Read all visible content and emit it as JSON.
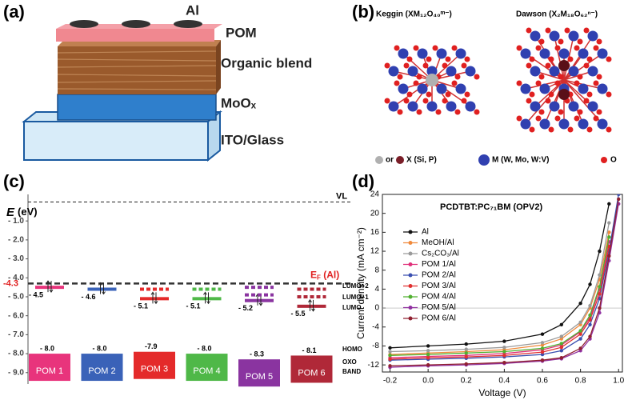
{
  "panel_labels": [
    "(a)",
    "(b)",
    "(c)",
    "(d)"
  ],
  "device": {
    "layers": [
      "Al",
      "POM",
      "Organic blend",
      "MoOₓ",
      "ITO/Glass"
    ]
  },
  "structures": {
    "keggin": "Keggin (XM₁₂O₄₀ᵐ⁻)",
    "dawson": "Dawson (X₂M₁₈O₆₂ⁿ⁻)",
    "legend": [
      "or",
      "X (Si, P)",
      "M (W, Mo, W:V)",
      "O"
    ]
  },
  "chart_data": [
    {
      "type": "energy-diagram",
      "y_symbol": "E",
      "y_unit": "(eV)",
      "categories": [
        "POM 1",
        "POM 2",
        "POM 3",
        "POM 4",
        "POM 5",
        "POM 6"
      ],
      "colors": [
        "#e8347c",
        "#3a62b8",
        "#e42a2a",
        "#4fb848",
        "#8a34a0",
        "#b02838"
      ],
      "lumo": [
        -4.5,
        -4.6,
        -5.1,
        -5.1,
        -5.2,
        -5.5
      ],
      "lumo_labels": [
        "- 4.5",
        "- 4.6",
        "- 5.1",
        "- 5.1",
        "- 5.2",
        "- 5.5"
      ],
      "upper_levels": [
        [],
        [],
        [
          -4.6
        ],
        [
          -4.6
        ],
        [
          -4.5,
          -4.9
        ],
        [
          -4.6,
          -5.0
        ]
      ],
      "homo": [
        -8.0,
        -8.0,
        -7.9,
        -8.0,
        -8.3,
        -8.1
      ],
      "homo_labels": [
        "- 8.0",
        "- 8.0",
        "-7.9",
        "- 8.0",
        "- 8.3",
        "- 8.1"
      ],
      "ylim": [
        -9.6,
        0.4
      ],
      "yticks": [
        {
          "value": -1,
          "label": "- 1.0"
        },
        {
          "value": -2,
          "label": "- 2.0"
        },
        {
          "value": -3,
          "label": "- 3.0"
        },
        {
          "value": -4,
          "label": "- 4.0"
        },
        {
          "value": -5,
          "label": "- 5.0"
        },
        {
          "value": -6,
          "label": "- 6.0"
        },
        {
          "value": -7,
          "label": "- 7.0"
        },
        {
          "value": -8,
          "label": "- 8.0"
        },
        {
          "value": -9,
          "label": "- 9.0"
        }
      ],
      "vacuum_level": {
        "value": 0,
        "label": "VL"
      },
      "fermi_level": {
        "value": -4.3,
        "label": "-4.3",
        "symbol": "E",
        "subscript": "F",
        "suffix": " (Al)"
      },
      "level_labels": [
        "LUMO+2",
        "LUMO+1",
        "LUMO",
        "HOMO",
        "OXO",
        "BAND"
      ]
    },
    {
      "type": "line",
      "title": "PCDTBT:PC₇₁BM (OPV2)",
      "x_label": "Voltage (V)",
      "y_label": "Current density (mA cm⁻²)",
      "x": [
        -0.2,
        0,
        0.2,
        0.4,
        0.6,
        0.7,
        0.8,
        0.85,
        0.9,
        0.95,
        1.0
      ],
      "series": [
        {
          "name": "Al",
          "color": "#111111",
          "values": [
            -8.4,
            -8.0,
            -7.6,
            -7.0,
            -5.5,
            -3.5,
            1,
            5,
            12,
            22,
            null
          ]
        },
        {
          "name": "MeOH/Al",
          "color": "#f08a3c",
          "values": [
            -9.8,
            -9.5,
            -9.2,
            -8.8,
            -7.8,
            -6.5,
            -3.5,
            0,
            6,
            16,
            null
          ]
        },
        {
          "name": "Cs₂CO₃/Al",
          "color": "#9a9a9a",
          "values": [
            -9.2,
            -9.0,
            -8.7,
            -8.3,
            -7.3,
            -6.0,
            -3.0,
            0.5,
            7,
            18,
            null
          ]
        },
        {
          "name": "POM 1/Al",
          "color": "#e0307a",
          "values": [
            -10.5,
            -10.2,
            -10.0,
            -9.6,
            -8.8,
            -7.8,
            -5.0,
            -2.0,
            4,
            14,
            null
          ]
        },
        {
          "name": "POM 2/Al",
          "color": "#3a4fb0",
          "values": [
            -11.0,
            -10.8,
            -10.6,
            -10.3,
            -9.8,
            -9.0,
            -6.5,
            -3.5,
            2,
            12,
            24
          ]
        },
        {
          "name": "POM 3/Al",
          "color": "#e03030",
          "values": [
            -10.8,
            -10.5,
            -10.3,
            -10.0,
            -9.3,
            -8.3,
            -5.5,
            -2.5,
            3,
            13,
            null
          ]
        },
        {
          "name": "POM 4/Al",
          "color": "#50b030",
          "values": [
            -10.0,
            -9.8,
            -9.5,
            -9.2,
            -8.5,
            -7.5,
            -4.8,
            -1.5,
            4.5,
            15,
            null
          ]
        },
        {
          "name": "POM 5/Al",
          "color": "#9030a0",
          "values": [
            -12.5,
            -12.2,
            -12.0,
            -11.7,
            -11.2,
            -10.7,
            -9.0,
            -6.5,
            -1,
            10,
            22
          ]
        },
        {
          "name": "POM 6/Al",
          "color": "#902030",
          "values": [
            -12.2,
            -12.0,
            -11.8,
            -11.5,
            -11.0,
            -10.5,
            -8.5,
            -6.0,
            0,
            11,
            23
          ]
        }
      ],
      "xlim": [
        -0.24,
        1.02
      ],
      "xticks": [
        -0.2,
        {
          "value": 0,
          "label": "0.0"
        },
        0.2,
        0.4,
        0.6,
        0.8,
        {
          "value": 1,
          "label": "1.0"
        }
      ],
      "ylim": [
        -13.5,
        24
      ],
      "yticks": [
        -12,
        -8,
        -4,
        0,
        4,
        8,
        12,
        16,
        20,
        24
      ]
    }
  ]
}
